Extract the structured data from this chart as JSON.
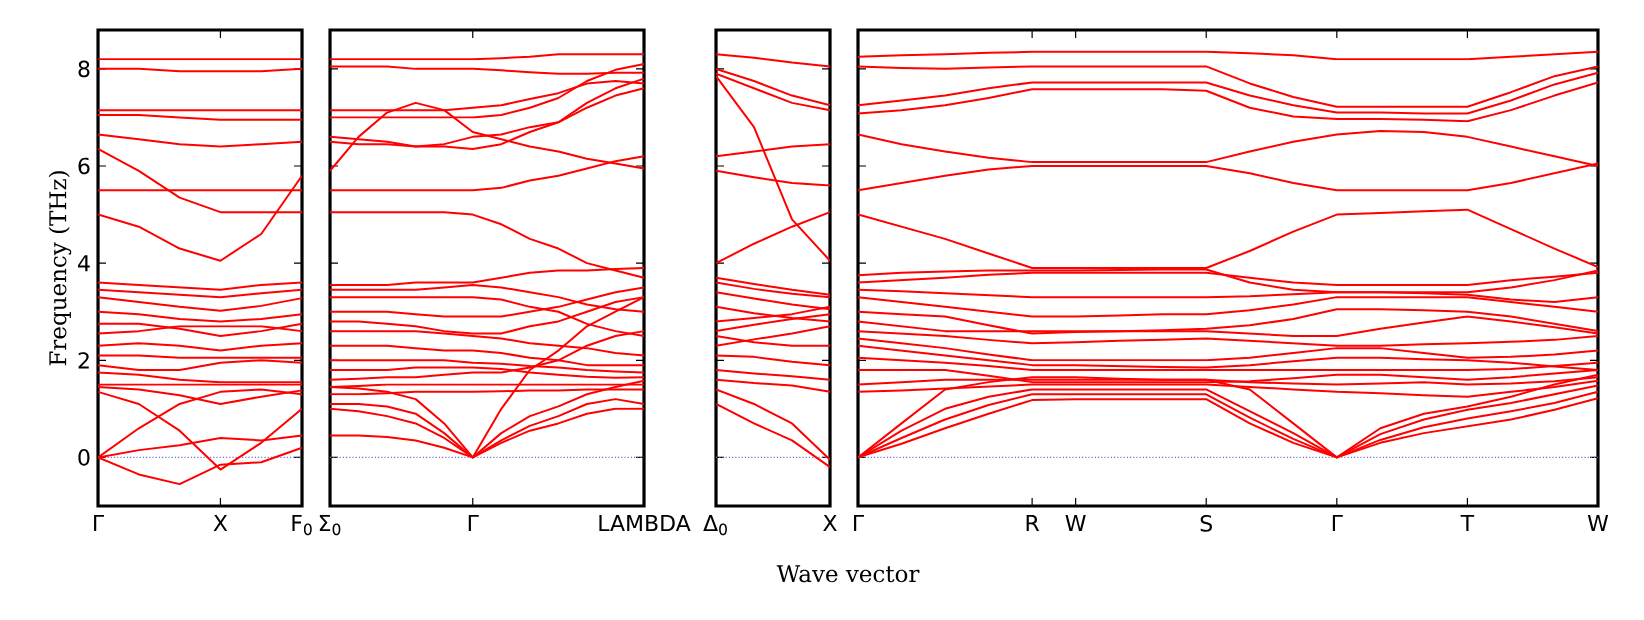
{
  "chart_data": [
    {
      "type": "line",
      "color": "#ff0000",
      "ylabel": "Frequency (THz)",
      "ylim": [
        -1,
        8.8
      ],
      "yticks": [
        0,
        2,
        4,
        6,
        8
      ],
      "categories": [
        "Γ",
        null,
        null,
        "X",
        null,
        "F$_{0}$"
      ],
      "ref_lines": [
        {
          "axis": "y",
          "value": 0,
          "color": "#7070e0",
          "line_style": "dotted"
        }
      ],
      "series": [
        {
          "values": [
            8.2,
            8.2,
            8.2,
            8.2,
            8.2,
            8.2
          ]
        },
        {
          "values": [
            8.0,
            8.0,
            7.95,
            7.95,
            7.95,
            8.0
          ]
        },
        {
          "values": [
            7.15,
            7.15,
            7.15,
            7.15,
            7.15,
            7.15
          ]
        },
        {
          "values": [
            7.05,
            7.05,
            7.0,
            6.95,
            6.95,
            6.95
          ]
        },
        {
          "values": [
            6.65,
            6.55,
            6.45,
            6.4,
            6.45,
            6.5
          ]
        },
        {
          "values": [
            6.35,
            5.9,
            5.35,
            5.05,
            5.05,
            5.05
          ]
        },
        {
          "values": [
            5.5,
            5.5,
            5.5,
            5.5,
            5.5,
            5.5
          ]
        },
        {
          "values": [
            5.0,
            4.75,
            4.3,
            4.05,
            4.6,
            5.8
          ]
        },
        {
          "values": [
            3.6,
            3.55,
            3.5,
            3.45,
            3.55,
            3.6
          ]
        },
        {
          "values": [
            3.45,
            3.4,
            3.35,
            3.3,
            3.38,
            3.45
          ]
        },
        {
          "values": [
            3.3,
            3.2,
            3.1,
            3.02,
            3.12,
            3.28
          ]
        },
        {
          "values": [
            3.0,
            2.95,
            2.85,
            2.8,
            2.85,
            2.95
          ]
        },
        {
          "values": [
            2.75,
            2.75,
            2.65,
            2.5,
            2.6,
            2.75
          ]
        },
        {
          "values": [
            2.55,
            2.6,
            2.7,
            2.7,
            2.7,
            2.6
          ]
        },
        {
          "values": [
            2.3,
            2.35,
            2.3,
            2.2,
            2.3,
            2.35
          ]
        },
        {
          "values": [
            2.1,
            2.1,
            2.05,
            2.05,
            2.05,
            2.05
          ]
        },
        {
          "values": [
            1.9,
            1.8,
            1.8,
            1.95,
            2.0,
            1.95
          ]
        },
        {
          "values": [
            1.75,
            1.7,
            1.6,
            1.55,
            1.55,
            1.55
          ]
        },
        {
          "values": [
            1.5,
            1.5,
            1.5,
            1.5,
            1.5,
            1.5
          ]
        },
        {
          "values": [
            1.45,
            1.4,
            1.28,
            1.1,
            1.25,
            1.38
          ]
        },
        {
          "values": [
            0,
            0.6,
            1.1,
            1.35,
            1.4,
            1.3
          ]
        },
        {
          "values": [
            1.35,
            1.1,
            0.55,
            -0.25,
            0.3,
            1.0
          ]
        },
        {
          "values": [
            0,
            0.15,
            0.25,
            0.4,
            0.35,
            0.45
          ]
        },
        {
          "values": [
            0,
            -0.35,
            -0.55,
            -0.15,
            -0.1,
            0.2
          ]
        }
      ]
    },
    {
      "type": "line",
      "color": "#ff0000",
      "tick_labels": "x",
      "ylim": [
        -1,
        8.8
      ],
      "yticks": [
        0,
        2,
        4,
        6,
        8
      ],
      "categories": [
        "Σ$_{0}$",
        null,
        null,
        null,
        null,
        "Γ",
        null,
        null,
        null,
        null,
        null,
        "LAMBDA"
      ],
      "ref_lines": [
        {
          "axis": "y",
          "value": 0,
          "color": "#7070e0",
          "line_style": "dotted"
        }
      ],
      "series": [
        {
          "values": [
            8.2,
            8.2,
            8.2,
            8.2,
            8.2,
            8.2,
            8.22,
            8.25,
            8.3,
            8.3,
            8.3,
            8.3
          ]
        },
        {
          "values": [
            8.05,
            8.05,
            8.05,
            8.0,
            8.0,
            8.0,
            7.97,
            7.93,
            7.9,
            7.9,
            7.92,
            7.92
          ]
        },
        {
          "values": [
            7.15,
            7.15,
            7.15,
            7.15,
            7.15,
            7.2,
            7.25,
            7.38,
            7.5,
            7.7,
            7.75,
            7.7
          ]
        },
        {
          "values": [
            7.0,
            7.0,
            7.0,
            7.0,
            7.0,
            7.0,
            7.05,
            7.2,
            7.4,
            7.75,
            7.98,
            8.1
          ]
        },
        {
          "values": [
            5.9,
            6.6,
            7.1,
            7.3,
            7.15,
            6.7,
            6.55,
            6.4,
            6.3,
            6.15,
            6.05,
            5.95
          ]
        },
        {
          "values": [
            6.6,
            6.55,
            6.5,
            6.4,
            6.45,
            6.6,
            6.65,
            6.8,
            6.9,
            7.2,
            7.45,
            7.6
          ]
        },
        {
          "values": [
            6.5,
            6.45,
            6.45,
            6.4,
            6.4,
            6.35,
            6.45,
            6.7,
            6.9,
            7.3,
            7.6,
            7.8
          ]
        },
        {
          "values": [
            5.5,
            5.5,
            5.5,
            5.5,
            5.5,
            5.5,
            5.55,
            5.7,
            5.8,
            5.95,
            6.1,
            6.2
          ]
        },
        {
          "values": [
            5.05,
            5.05,
            5.05,
            5.05,
            5.05,
            5.0,
            4.8,
            4.5,
            4.3,
            4.0,
            3.85,
            3.7
          ]
        },
        {
          "values": [
            3.55,
            3.55,
            3.55,
            3.6,
            3.6,
            3.6,
            3.7,
            3.8,
            3.85,
            3.85,
            3.88,
            3.9
          ]
        },
        {
          "values": [
            3.45,
            3.45,
            3.45,
            3.45,
            3.5,
            3.55,
            3.5,
            3.4,
            3.3,
            3.15,
            3.05,
            3.0
          ]
        },
        {
          "values": [
            3.3,
            3.3,
            3.3,
            3.3,
            3.3,
            3.3,
            3.25,
            3.1,
            3.0,
            2.75,
            2.6,
            2.5
          ]
        },
        {
          "values": [
            3.0,
            3.0,
            3.0,
            2.95,
            2.9,
            2.9,
            2.9,
            3.0,
            3.1,
            3.25,
            3.4,
            3.5
          ]
        },
        {
          "values": [
            2.8,
            2.8,
            2.75,
            2.7,
            2.6,
            2.55,
            2.55,
            2.7,
            2.8,
            3.0,
            3.2,
            3.3
          ]
        },
        {
          "values": [
            2.6,
            2.6,
            2.6,
            2.6,
            2.55,
            2.5,
            2.45,
            2.35,
            2.3,
            2.25,
            2.15,
            2.1
          ]
        },
        {
          "values": [
            2.3,
            2.3,
            2.3,
            2.25,
            2.2,
            2.2,
            2.15,
            2.05,
            2.0,
            1.9,
            1.9,
            1.9
          ]
        },
        {
          "values": [
            2.0,
            2.0,
            2.0,
            2.0,
            2.0,
            1.95,
            1.93,
            1.88,
            1.85,
            1.8,
            1.77,
            1.75
          ]
        },
        {
          "values": [
            1.8,
            1.8,
            1.8,
            1.85,
            1.85,
            1.85,
            1.82,
            1.75,
            1.7,
            1.66,
            1.64,
            1.65
          ]
        },
        {
          "values": [
            1.6,
            1.62,
            1.65,
            1.65,
            1.7,
            1.75,
            1.75,
            1.85,
            2.0,
            2.3,
            2.5,
            2.6
          ]
        },
        {
          "values": [
            1.45,
            1.47,
            1.5,
            1.5,
            1.5,
            1.5,
            1.5,
            1.5,
            1.5,
            1.5,
            1.5,
            1.5
          ]
        },
        {
          "values": [
            1.3,
            1.3,
            1.32,
            1.35,
            1.35,
            1.35,
            1.36,
            1.38,
            1.38,
            1.4,
            1.4,
            1.4
          ]
        },
        {
          "values": [
            0.45,
            0.45,
            0.42,
            0.35,
            0.2,
            0,
            0.3,
            0.55,
            0.7,
            0.9,
            1.0,
            1.0
          ]
        },
        {
          "values": [
            1.0,
            0.95,
            0.85,
            0.7,
            0.4,
            0,
            0.35,
            0.65,
            0.85,
            1.1,
            1.2,
            1.1
          ]
        },
        {
          "values": [
            1.1,
            1.1,
            1.05,
            0.9,
            0.5,
            0,
            0.5,
            0.85,
            1.05,
            1.3,
            1.45,
            1.58
          ]
        },
        {
          "values": [
            1.45,
            1.42,
            1.35,
            1.2,
            0.7,
            0,
            1.0,
            1.8,
            2.2,
            2.7,
            3.0,
            3.3
          ]
        }
      ]
    },
    {
      "type": "line",
      "color": "#ff0000",
      "tick_labels": "x",
      "ylim": [
        -1,
        8.8
      ],
      "yticks": [
        0,
        2,
        4,
        6,
        8
      ],
      "categories": [
        "Δ$_{0}$",
        null,
        null,
        "X"
      ],
      "ref_lines": [
        {
          "axis": "y",
          "value": 0,
          "color": "#7070e0",
          "line_style": "dotted"
        }
      ],
      "series": [
        {
          "values": [
            8.3,
            8.23,
            8.13,
            8.05
          ]
        },
        {
          "values": [
            8.0,
            7.75,
            7.45,
            7.25
          ]
        },
        {
          "values": [
            7.9,
            7.6,
            7.3,
            7.15
          ]
        },
        {
          "values": [
            7.85,
            6.8,
            4.9,
            4.05
          ]
        },
        {
          "values": [
            6.2,
            6.3,
            6.4,
            6.45
          ]
        },
        {
          "values": [
            5.9,
            5.77,
            5.65,
            5.6
          ]
        },
        {
          "values": [
            4.0,
            4.4,
            4.75,
            5.05
          ]
        },
        {
          "values": [
            3.7,
            3.57,
            3.45,
            3.35
          ]
        },
        {
          "values": [
            3.6,
            3.47,
            3.37,
            3.3
          ]
        },
        {
          "values": [
            3.4,
            3.27,
            3.15,
            3.05
          ]
        },
        {
          "values": [
            3.1,
            2.97,
            2.87,
            2.8
          ]
        },
        {
          "values": [
            2.8,
            2.87,
            2.95,
            3.1
          ]
        },
        {
          "values": [
            2.6,
            2.73,
            2.85,
            2.95
          ]
        },
        {
          "values": [
            2.5,
            2.37,
            2.3,
            2.3
          ]
        },
        {
          "values": [
            2.3,
            2.43,
            2.55,
            2.7
          ]
        },
        {
          "values": [
            2.1,
            2.07,
            1.97,
            1.9
          ]
        },
        {
          "values": [
            1.8,
            1.73,
            1.67,
            1.6
          ]
        },
        {
          "values": [
            1.6,
            1.53,
            1.48,
            1.35
          ]
        },
        {
          "values": [
            1.4,
            1.1,
            0.7,
            -0.05
          ]
        },
        {
          "values": [
            1.1,
            0.7,
            0.35,
            -0.2
          ]
        }
      ]
    },
    {
      "type": "line",
      "color": "#ff0000",
      "tick_labels": "x",
      "xlabel": "Wave vector",
      "ylim": [
        -1,
        8.8
      ],
      "yticks": [
        0,
        2,
        4,
        6,
        8
      ],
      "categories": [
        "Γ",
        null,
        null,
        null,
        "R",
        "W",
        null,
        null,
        "S",
        null,
        null,
        "Γ",
        null,
        null,
        "T",
        null,
        null,
        "W"
      ],
      "ref_lines": [
        {
          "axis": "y",
          "value": 0,
          "color": "#7070e0",
          "line_style": "dotted"
        }
      ],
      "series": [
        {
          "values": [
            8.25,
            8.28,
            8.3,
            8.33,
            8.35,
            8.35,
            8.35,
            8.35,
            8.35,
            8.32,
            8.28,
            8.2,
            8.2,
            8.2,
            8.2,
            8.25,
            8.3,
            8.35
          ]
        },
        {
          "values": [
            8.05,
            8.02,
            8.0,
            8.03,
            8.05,
            8.05,
            8.05,
            8.05,
            8.05,
            7.7,
            7.42,
            7.22,
            7.22,
            7.22,
            7.22,
            7.52,
            7.85,
            8.05
          ]
        },
        {
          "values": [
            7.25,
            7.35,
            7.45,
            7.6,
            7.72,
            7.72,
            7.72,
            7.72,
            7.72,
            7.45,
            7.25,
            7.1,
            7.1,
            7.08,
            7.08,
            7.35,
            7.68,
            7.92
          ]
        },
        {
          "values": [
            7.08,
            7.15,
            7.25,
            7.4,
            7.58,
            7.58,
            7.58,
            7.58,
            7.55,
            7.2,
            7.02,
            6.97,
            6.97,
            6.95,
            6.92,
            7.15,
            7.45,
            7.72
          ]
        },
        {
          "values": [
            6.65,
            6.45,
            6.3,
            6.17,
            6.08,
            6.08,
            6.08,
            6.08,
            6.08,
            6.3,
            6.5,
            6.65,
            6.72,
            6.7,
            6.6,
            6.4,
            6.2,
            6.0
          ]
        },
        {
          "values": [
            5.5,
            5.65,
            5.8,
            5.93,
            6.0,
            6.0,
            6.0,
            6.0,
            6.0,
            5.85,
            5.65,
            5.5,
            5.5,
            5.5,
            5.5,
            5.65,
            5.85,
            6.05
          ]
        },
        {
          "values": [
            5.0,
            4.75,
            4.5,
            4.2,
            3.9,
            3.9,
            3.9,
            3.9,
            3.9,
            4.25,
            4.65,
            5.0,
            5.03,
            5.07,
            5.1,
            4.7,
            4.3,
            3.92
          ]
        },
        {
          "values": [
            3.75,
            3.8,
            3.83,
            3.85,
            3.85,
            3.85,
            3.86,
            3.87,
            3.87,
            3.6,
            3.45,
            3.4,
            3.4,
            3.4,
            3.4,
            3.5,
            3.65,
            3.85
          ]
        },
        {
          "values": [
            3.6,
            3.65,
            3.7,
            3.76,
            3.8,
            3.8,
            3.8,
            3.8,
            3.8,
            3.7,
            3.6,
            3.55,
            3.55,
            3.55,
            3.55,
            3.65,
            3.72,
            3.8
          ]
        },
        {
          "values": [
            3.45,
            3.42,
            3.38,
            3.34,
            3.3,
            3.3,
            3.3,
            3.3,
            3.3,
            3.32,
            3.36,
            3.4,
            3.4,
            3.38,
            3.35,
            3.25,
            3.2,
            3.3
          ]
        },
        {
          "values": [
            3.3,
            3.2,
            3.1,
            3.0,
            2.9,
            2.9,
            2.92,
            2.95,
            2.95,
            3.03,
            3.15,
            3.3,
            3.3,
            3.3,
            3.3,
            3.2,
            3.1,
            3.0
          ]
        },
        {
          "values": [
            3.0,
            2.95,
            2.9,
            2.72,
            2.55,
            2.58,
            2.6,
            2.62,
            2.65,
            2.72,
            2.85,
            3.05,
            3.05,
            3.03,
            3.0,
            2.9,
            2.75,
            2.6
          ]
        },
        {
          "values": [
            2.8,
            2.7,
            2.6,
            2.6,
            2.6,
            2.6,
            2.6,
            2.6,
            2.6,
            2.55,
            2.5,
            2.5,
            2.65,
            2.78,
            2.9,
            2.8,
            2.68,
            2.55
          ]
        },
        {
          "values": [
            2.6,
            2.55,
            2.5,
            2.42,
            2.35,
            2.37,
            2.4,
            2.42,
            2.45,
            2.4,
            2.35,
            2.3,
            2.3,
            2.33,
            2.35,
            2.38,
            2.42,
            2.5
          ]
        },
        {
          "values": [
            2.45,
            2.35,
            2.25,
            2.12,
            2.0,
            2.0,
            2.0,
            2.0,
            2.0,
            2.05,
            2.15,
            2.25,
            2.25,
            2.15,
            2.05,
            2.07,
            2.12,
            2.2
          ]
        },
        {
          "values": [
            2.3,
            2.2,
            2.1,
            2.0,
            1.9,
            1.9,
            1.88,
            1.86,
            1.85,
            1.9,
            1.98,
            2.05,
            2.05,
            2.02,
            2.0,
            1.95,
            1.87,
            1.8
          ]
        },
        {
          "values": [
            2.05,
            2.0,
            1.95,
            1.88,
            1.8,
            1.8,
            1.8,
            1.8,
            1.8,
            1.8,
            1.8,
            1.8,
            1.8,
            1.8,
            1.8,
            1.82,
            1.88,
            1.95
          ]
        },
        {
          "values": [
            1.8,
            1.8,
            1.8,
            1.68,
            1.55,
            1.55,
            1.55,
            1.55,
            1.55,
            1.57,
            1.63,
            1.7,
            1.7,
            1.65,
            1.6,
            1.65,
            1.73,
            1.8
          ]
        },
        {
          "values": [
            1.5,
            1.55,
            1.6,
            1.6,
            1.6,
            1.6,
            1.6,
            1.6,
            1.6,
            1.55,
            1.52,
            1.5,
            1.52,
            1.55,
            1.5,
            1.52,
            1.57,
            1.65
          ]
        },
        {
          "values": [
            1.35,
            1.38,
            1.42,
            1.46,
            1.5,
            1.5,
            1.5,
            1.5,
            1.5,
            1.45,
            1.4,
            1.35,
            1.32,
            1.28,
            1.25,
            1.35,
            1.45,
            1.58
          ]
        },
        {
          "values": [
            0,
            0.55,
            1.0,
            1.25,
            1.4,
            1.4,
            1.4,
            1.4,
            1.4,
            0.95,
            0.5,
            0,
            0.48,
            0.78,
            0.98,
            1.12,
            1.3,
            1.48
          ]
        },
        {
          "values": [
            0,
            0.4,
            0.78,
            1.08,
            1.3,
            1.3,
            1.3,
            1.3,
            1.3,
            0.82,
            0.38,
            0,
            0.36,
            0.62,
            0.8,
            0.95,
            1.12,
            1.35
          ]
        },
        {
          "values": [
            0,
            0.28,
            0.6,
            0.9,
            1.18,
            1.2,
            1.2,
            1.2,
            1.2,
            0.7,
            0.3,
            0,
            0.3,
            0.5,
            0.64,
            0.78,
            0.98,
            1.22
          ]
        },
        {
          "values": [
            0,
            0.7,
            1.4,
            1.55,
            1.65,
            1.65,
            1.62,
            1.6,
            1.6,
            1.4,
            0.7,
            0,
            0.6,
            0.9,
            1.05,
            1.25,
            1.5,
            1.7
          ]
        }
      ]
    }
  ]
}
